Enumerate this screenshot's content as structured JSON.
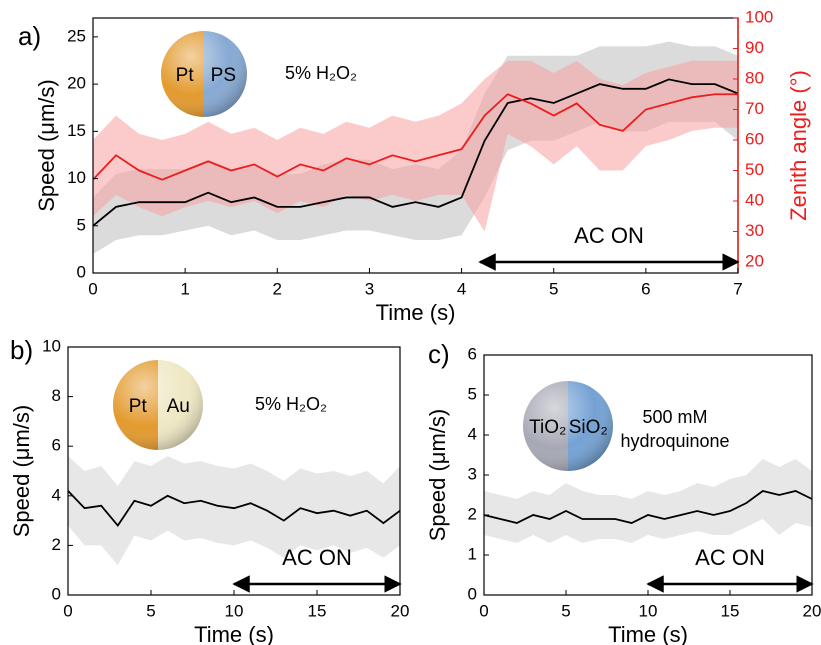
{
  "chart_data": [
    {
      "type": "line",
      "panel_label": "a)",
      "xlabel": "Time (s)",
      "ylabel": "Speed (μm/s)",
      "y2label": "Zenith angle (°)",
      "particle": {
        "left": "Pt",
        "right": "PS",
        "colors": [
          "#e39a2e",
          "#86a9d3"
        ]
      },
      "condition": [
        "5% H₂O₂"
      ],
      "annotation": {
        "text": "AC ON",
        "x": [
          4.2,
          7
        ]
      },
      "x": [
        0,
        0.25,
        0.5,
        0.75,
        1,
        1.25,
        1.5,
        1.75,
        2,
        2.25,
        2.5,
        2.75,
        3,
        3.25,
        3.5,
        3.75,
        4,
        4.25,
        4.5,
        4.75,
        5,
        5.25,
        5.5,
        5.75,
        6,
        6.25,
        6.5,
        6.75,
        7
      ],
      "xlim": [
        0,
        7
      ],
      "xticks": [
        0,
        1,
        2,
        3,
        4,
        5,
        6,
        7
      ],
      "ylim": [
        0,
        27
      ],
      "yticks": [
        0,
        5,
        10,
        15,
        20,
        25
      ],
      "y2lim": [
        16.4,
        100
      ],
      "y2ticks": [
        20,
        30,
        40,
        50,
        60,
        70,
        80,
        90,
        100
      ],
      "y2color": "#ee1c1c",
      "series": [
        {
          "color": "#000000",
          "band_color": "#bdbdbd",
          "values": [
            5,
            7,
            7.5,
            7.5,
            7.5,
            8.5,
            7.5,
            8,
            7,
            7,
            7.5,
            8,
            8,
            7,
            7.5,
            7,
            8,
            14,
            18,
            18.5,
            18,
            19,
            20,
            19.5,
            19.5,
            20.5,
            20,
            20,
            19
          ],
          "lower": [
            2,
            3.5,
            4,
            4,
            4.5,
            5,
            4,
            4.5,
            3.5,
            3.5,
            4,
            4.5,
            4.5,
            4,
            3.5,
            3.5,
            4,
            8,
            13,
            14,
            14,
            15,
            16,
            15,
            15,
            16,
            16,
            16,
            14
          ],
          "upper": [
            8,
            10.5,
            11,
            11,
            11,
            12,
            11,
            11.5,
            10.5,
            10.5,
            11.5,
            12,
            12,
            11,
            11.5,
            11,
            13,
            19,
            23,
            23,
            23,
            23,
            24,
            24,
            24,
            24.5,
            24,
            24,
            23
          ]
        },
        {
          "color": "#ee1c1c",
          "band_color": "#f7a1a1",
          "axis": "y2",
          "values": [
            47,
            55,
            50,
            47,
            50,
            53,
            50,
            52,
            48,
            52,
            50,
            54,
            52,
            55,
            53,
            55,
            57,
            68,
            75,
            72,
            68,
            72,
            65,
            63,
            70,
            72,
            74,
            75,
            75
          ],
          "lower": [
            35,
            42,
            38,
            35,
            38,
            40,
            38,
            40,
            36,
            40,
            38,
            42,
            40,
            42,
            40,
            42,
            42,
            30,
            62,
            58,
            52,
            58,
            50,
            50,
            58,
            60,
            63,
            64,
            64
          ],
          "upper": [
            60,
            68,
            62,
            60,
            62,
            66,
            62,
            64,
            60,
            64,
            62,
            66,
            64,
            68,
            66,
            68,
            72,
            80,
            86,
            86,
            82,
            86,
            80,
            78,
            82,
            84,
            86,
            86,
            86
          ]
        }
      ]
    },
    {
      "type": "line",
      "panel_label": "b)",
      "xlabel": "Time (s)",
      "ylabel": "Speed (μm/s)",
      "particle": {
        "left": "Pt",
        "right": "Au",
        "colors": [
          "#e39a2e",
          "#eee8c4"
        ]
      },
      "condition": [
        "5% H₂O₂"
      ],
      "annotation": {
        "text": "AC ON",
        "x": [
          10,
          20
        ]
      },
      "x": [
        0,
        1,
        2,
        3,
        4,
        5,
        6,
        7,
        8,
        9,
        10,
        11,
        12,
        13,
        14,
        15,
        16,
        17,
        18,
        19,
        20
      ],
      "xlim": [
        0,
        20
      ],
      "xticks": [
        0,
        5,
        10,
        15,
        20
      ],
      "ylim": [
        0,
        10
      ],
      "yticks": [
        0,
        2,
        4,
        6,
        8,
        10
      ],
      "series": [
        {
          "color": "#000000",
          "band_color": "#d4d4d4",
          "values": [
            4.2,
            3.5,
            3.6,
            2.8,
            3.8,
            3.6,
            4.0,
            3.7,
            3.8,
            3.6,
            3.5,
            3.7,
            3.4,
            3.0,
            3.5,
            3.3,
            3.4,
            3.2,
            3.4,
            2.9,
            3.4
          ],
          "lower": [
            2.8,
            2,
            2,
            1.2,
            2.4,
            2.2,
            2.6,
            2.2,
            2.3,
            2.1,
            2,
            2.2,
            1.9,
            1.5,
            2,
            1.8,
            2,
            1.7,
            1.9,
            1.5,
            2
          ],
          "upper": [
            5.6,
            5,
            5.2,
            4.4,
            5.4,
            5.2,
            5.6,
            5.3,
            5.4,
            5.2,
            5.1,
            5.3,
            5,
            4.6,
            5.1,
            4.9,
            5,
            4.8,
            5,
            4.5,
            5.2
          ]
        }
      ]
    },
    {
      "type": "line",
      "panel_label": "c)",
      "xlabel": "Time (s)",
      "ylabel": "Speed (μm/s)",
      "particle": {
        "left": "TiO₂",
        "right": "SiO₂",
        "colors": [
          "#a6a8b4",
          "#74a2d4"
        ]
      },
      "condition": [
        "500 mM",
        "hydroquinone"
      ],
      "annotation": {
        "text": "AC ON",
        "x": [
          10,
          20
        ]
      },
      "x": [
        0,
        1,
        2,
        3,
        4,
        5,
        6,
        7,
        8,
        9,
        10,
        11,
        12,
        13,
        14,
        15,
        16,
        17,
        18,
        19,
        20
      ],
      "xlim": [
        0,
        20
      ],
      "xticks": [
        0,
        5,
        10,
        15,
        20
      ],
      "ylim": [
        0,
        6
      ],
      "yticks": [
        0,
        1,
        2,
        3,
        4,
        5,
        6
      ],
      "series": [
        {
          "color": "#000000",
          "band_color": "#d4d4d4",
          "values": [
            2.0,
            1.9,
            1.8,
            2.0,
            1.9,
            2.1,
            1.9,
            1.9,
            1.9,
            1.8,
            2.0,
            1.9,
            2.0,
            2.1,
            2.0,
            2.1,
            2.3,
            2.6,
            2.5,
            2.6,
            2.4
          ],
          "lower": [
            1.5,
            1.4,
            1.3,
            1.5,
            1.3,
            1.5,
            1.3,
            1.4,
            1.4,
            1.3,
            1.5,
            1.4,
            1.5,
            1.6,
            1.5,
            1.5,
            1.7,
            1.9,
            1.5,
            1.8,
            1.7
          ],
          "upper": [
            2.6,
            2.5,
            2.4,
            2.6,
            2.5,
            2.8,
            2.6,
            2.5,
            2.5,
            2.4,
            2.6,
            2.5,
            2.6,
            2.8,
            2.7,
            2.9,
            3.0,
            3.4,
            3.2,
            3.4,
            3.1
          ]
        }
      ]
    }
  ]
}
